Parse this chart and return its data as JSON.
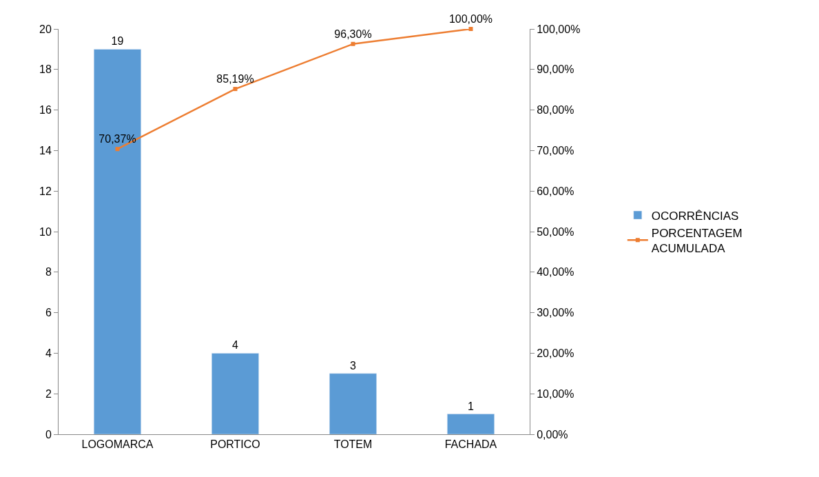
{
  "chart_data": {
    "type": "bar",
    "categories": [
      "LOGOMARCA",
      "PORTICO",
      "TOTEM",
      "FACHADA"
    ],
    "series": [
      {
        "name": "OCORRÊNCIAS",
        "color": "#5b9bd5",
        "values": [
          19,
          4,
          3,
          1
        ],
        "value_labels": [
          "19",
          "4",
          "3",
          "1"
        ]
      },
      {
        "name": "PORCENTAGEM ACUMULADA",
        "type": "line",
        "axis": "y2",
        "color": "#ed7d31",
        "marker": "square",
        "values": [
          70.37,
          85.19,
          96.3,
          100.0
        ],
        "value_labels": [
          "70,37%",
          "85,19%",
          "96,30%",
          "100,00%"
        ]
      }
    ],
    "ylim": [
      0,
      20
    ],
    "yticks": [
      0,
      2,
      4,
      6,
      8,
      10,
      12,
      14,
      16,
      18,
      20
    ],
    "y2lim": [
      0,
      100
    ],
    "y2ticks": [
      {
        "value": 0,
        "label": "0,00%"
      },
      {
        "value": 10,
        "label": "10,00%"
      },
      {
        "value": 20,
        "label": "20,00%"
      },
      {
        "value": 30,
        "label": "30,00%"
      },
      {
        "value": 40,
        "label": "40,00%"
      },
      {
        "value": 50,
        "label": "50,00%"
      },
      {
        "value": 60,
        "label": "60,00%"
      },
      {
        "value": 70,
        "label": "70,00%"
      },
      {
        "value": 80,
        "label": "80,00%"
      },
      {
        "value": 90,
        "label": "90,00%"
      },
      {
        "value": 100,
        "label": "100,00%"
      }
    ],
    "legend": "right"
  }
}
